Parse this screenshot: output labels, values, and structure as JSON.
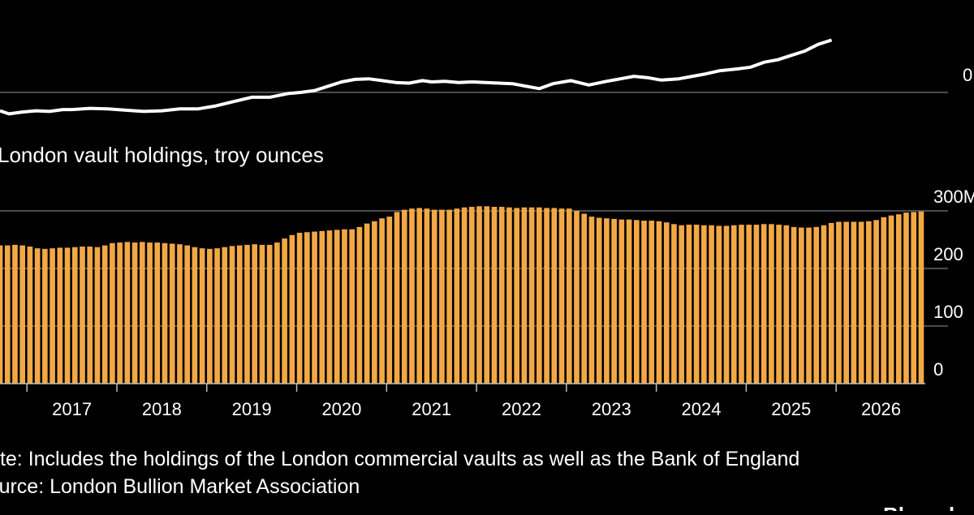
{
  "chart_data": [
    {
      "type": "line",
      "title": "",
      "yticks": [
        {
          "value": 0,
          "label": "0"
        }
      ],
      "x": [
        2016.2,
        2016.3,
        2016.45,
        2016.6,
        2016.75,
        2016.9,
        2017.0,
        2017.2,
        2017.4,
        2017.6,
        2017.8,
        2018.0,
        2018.2,
        2018.4,
        2018.6,
        2018.8,
        2019.0,
        2019.2,
        2019.4,
        2019.55,
        2019.7,
        2019.85,
        2020.0,
        2020.15,
        2020.3,
        2020.45,
        2020.6,
        2020.75,
        2020.9,
        2021.0,
        2021.15,
        2021.3,
        2021.45,
        2021.6,
        2021.75,
        2021.9,
        2022.05,
        2022.2,
        2022.35,
        2022.55,
        2022.75,
        2022.95,
        2023.1,
        2023.25,
        2023.4,
        2023.55,
        2023.75,
        2023.9,
        2024.05,
        2024.2,
        2024.4,
        2024.55,
        2024.7,
        2024.85,
        2025.0,
        2025.15,
        2025.3,
        2025.45
      ],
      "series": [
        {
          "name": "",
          "values": [
            -0.3,
            -0.35,
            -0.32,
            -0.3,
            -0.31,
            -0.28,
            -0.28,
            -0.26,
            -0.27,
            -0.29,
            -0.31,
            -0.3,
            -0.27,
            -0.27,
            -0.22,
            -0.15,
            -0.08,
            -0.08,
            -0.02,
            0.0,
            0.03,
            0.1,
            0.17,
            0.21,
            0.22,
            0.19,
            0.16,
            0.15,
            0.19,
            0.17,
            0.18,
            0.16,
            0.17,
            0.16,
            0.15,
            0.14,
            0.1,
            0.06,
            0.14,
            0.19,
            0.12,
            0.18,
            0.22,
            0.26,
            0.24,
            0.2,
            0.22,
            0.26,
            0.3,
            0.35,
            0.38,
            0.41,
            0.49,
            0.53,
            0.6,
            0.67,
            0.78,
            0.85
          ]
        }
      ],
      "ylim": [
        -0.45,
        1.0
      ],
      "xlim": [
        2016.2,
        2026.6
      ],
      "grid": true
    },
    {
      "type": "bar",
      "title": "London vault holdings, troy ounces",
      "yticks": [
        {
          "value": 0,
          "label": "0"
        },
        {
          "value": 100,
          "label": "100"
        },
        {
          "value": 200,
          "label": "200"
        },
        {
          "value": 300,
          "label": "300M"
        }
      ],
      "ylim": [
        0,
        300
      ],
      "xlim": [
        2016.2,
        2026.6
      ],
      "x_tick_labels": [
        "2017",
        "2018",
        "2019",
        "2020",
        "2021",
        "2022",
        "2023",
        "2024",
        "2025",
        "2026"
      ],
      "x_tick_values": [
        2017,
        2018,
        2019,
        2020,
        2021,
        2022,
        2023,
        2024,
        2025,
        2026
      ],
      "bar_start": 2016.2,
      "bar_step": 0.0833,
      "unit": "million troy ounces",
      "values": [
        240,
        240,
        241,
        240,
        238,
        235,
        234,
        235,
        236,
        236,
        237,
        238,
        238,
        237,
        240,
        244,
        245,
        246,
        245,
        246,
        245,
        245,
        244,
        243,
        242,
        240,
        237,
        235,
        234,
        235,
        237,
        239,
        240,
        241,
        242,
        241,
        241,
        245,
        252,
        258,
        262,
        263,
        264,
        265,
        266,
        267,
        268,
        268,
        272,
        278,
        282,
        287,
        290,
        298,
        302,
        304,
        305,
        304,
        302,
        302,
        302,
        304,
        306,
        307,
        308,
        308,
        307,
        307,
        306,
        305,
        306,
        306,
        306,
        305,
        305,
        304,
        304,
        300,
        295,
        290,
        288,
        287,
        286,
        285,
        285,
        284,
        283,
        283,
        282,
        280,
        277,
        275,
        276,
        276,
        275,
        275,
        274,
        274,
        275,
        276,
        276,
        276,
        277,
        277,
        276,
        275,
        272,
        271,
        271,
        272,
        275,
        279,
        281,
        281,
        281,
        281,
        282,
        284,
        289,
        292,
        294,
        297,
        298,
        299
      ]
    }
  ],
  "notes": {
    "note": "Note: Includes the holdings of the London commercial vaults as well as the Bank of England",
    "source": "Source: London Bullion Market Association"
  },
  "brand": "Bloomberg",
  "colors": {
    "background": "#000000",
    "line": "#ffffff",
    "bar": "#f2a845",
    "grid": "#666666",
    "text": "#ffffff"
  }
}
